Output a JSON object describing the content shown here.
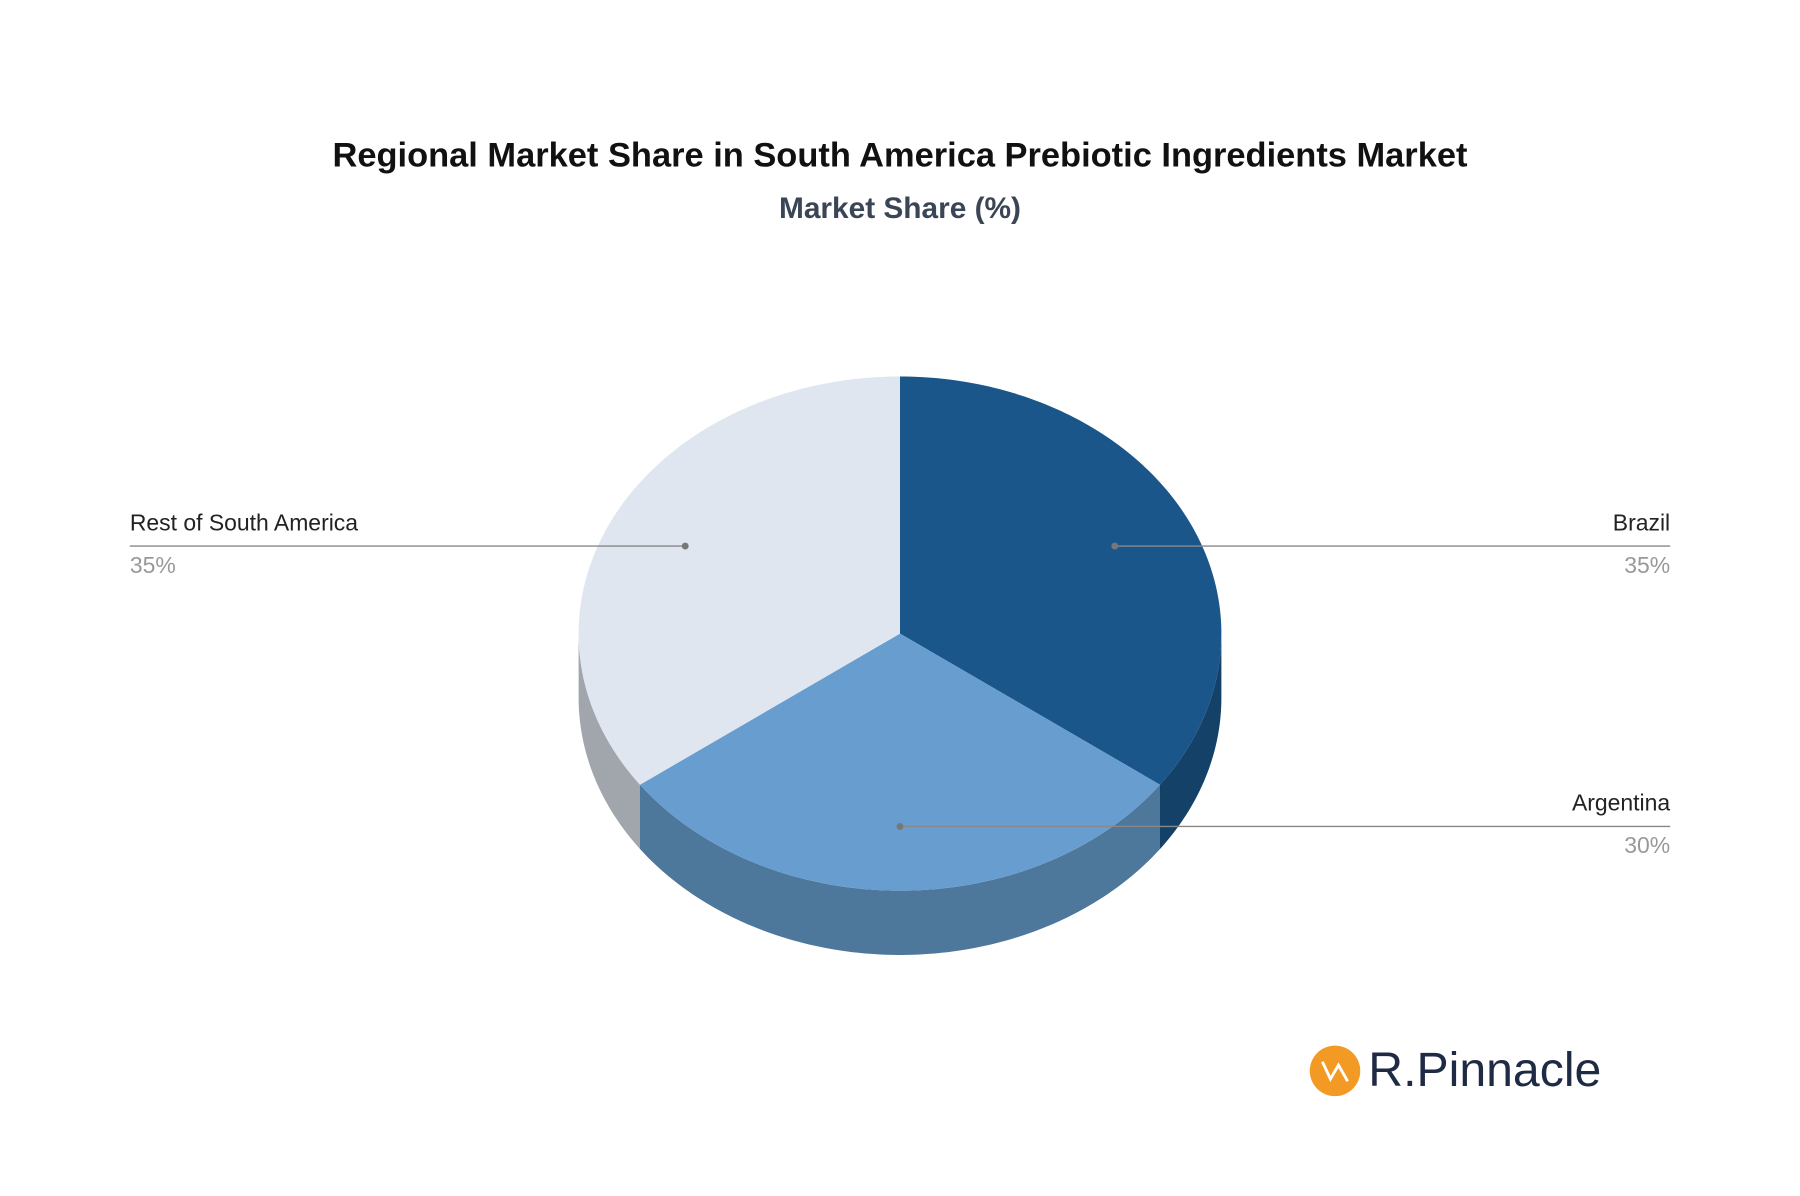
{
  "chart_data": {
    "type": "pie",
    "title": "Regional Market Share in South America Prebiotic Ingredients Market",
    "subtitle": "Market Share (%)",
    "categories": [
      "Brazil",
      "Argentina",
      "Rest of South America"
    ],
    "values": [
      35,
      30,
      35
    ],
    "value_labels": [
      "35%",
      "30%",
      "35%"
    ],
    "colors": [
      "#1a568a",
      "#679ecf",
      "#dfe6ef"
    ]
  },
  "watermark": "R.Pinnacle"
}
